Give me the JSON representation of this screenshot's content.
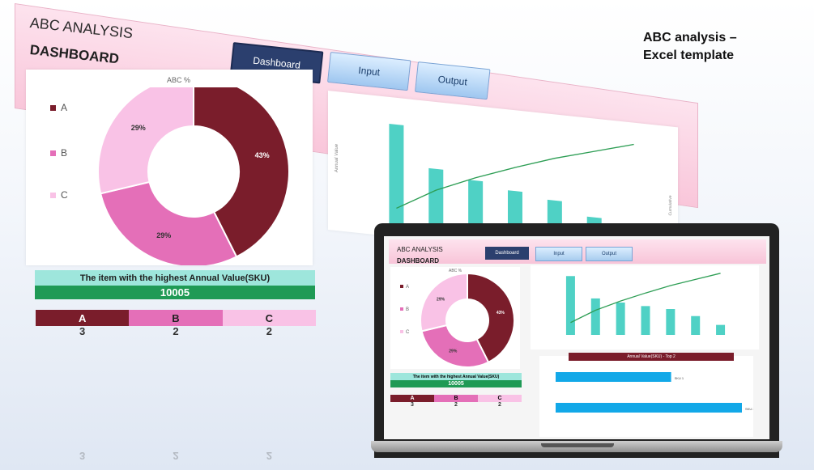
{
  "header": {
    "title": "ABC ANALYSIS",
    "subtitle": "DASHBOARD"
  },
  "nav": {
    "dashboard": "Dashboard",
    "input": "Input",
    "output": "Output"
  },
  "caption": {
    "line1": "ABC analysis –",
    "line2": "Excel template"
  },
  "donut": {
    "title": "ABC %",
    "legend": [
      "A",
      "B",
      "C"
    ],
    "colors": {
      "A": "#7a1d2b",
      "B": "#e46fb8",
      "C": "#f9c2e6"
    }
  },
  "highest_value": {
    "label": "The item with the highest Annual Value(SKU)",
    "value": "10005"
  },
  "abc_counts": {
    "A_label": "A",
    "B_label": "B",
    "C_label": "C",
    "A": "3",
    "B": "2",
    "C": "2"
  },
  "colors": {
    "band_A": "#7a1d2b",
    "band_B": "#e46fb8",
    "band_C": "#f9c2e6",
    "bar": "#4fd1c5",
    "line": "#2e9e55",
    "top2bar": "#12a8e8"
  },
  "laptop": {
    "top2_title": "Annual Value(SKU) - Top 2",
    "bar_labels": [
      "SKU 1",
      "SKU 2"
    ]
  },
  "chart_data": [
    {
      "type": "pie",
      "title": "ABC %",
      "categories": [
        "A",
        "B",
        "C"
      ],
      "values": [
        43,
        29,
        29
      ],
      "labels": [
        "43%",
        "29%",
        "29%"
      ]
    },
    {
      "type": "bar",
      "title": "",
      "ylabel": "Annual Value",
      "y2label": "Cumulative",
      "categories": [
        "",
        "",
        "",
        "",
        "",
        "",
        ""
      ],
      "series": [
        {
          "values": [
            100,
            62,
            55,
            49,
            44,
            32,
            17
          ]
        },
        {
          "values": [
            20,
            40,
            55,
            68,
            80,
            90,
            100
          ]
        }
      ]
    },
    {
      "type": "bar",
      "title": "Annual Value(SKU) - Top 2",
      "categories": [
        "",
        ""
      ],
      "values": [
        62,
        100
      ]
    }
  ]
}
